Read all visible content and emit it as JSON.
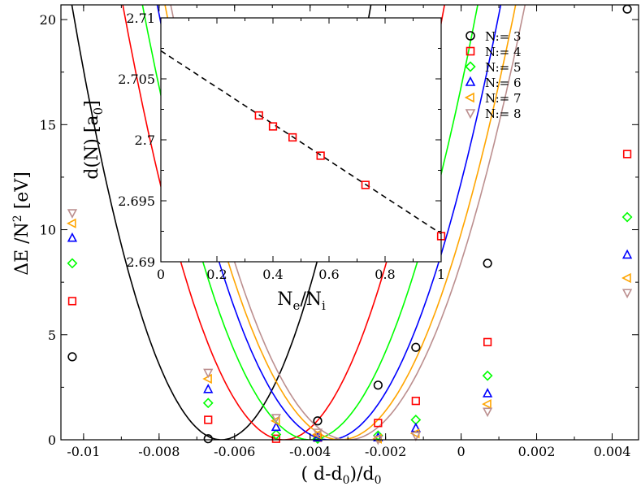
{
  "chart_data": [
    {
      "type": "scatter",
      "title": "",
      "xlabel": {
        "prefix": "( d-d",
        "sub0": "0",
        "mid": ")/d",
        "sub1": "0"
      },
      "ylabel": {
        "prefix": "ΔE /N",
        "sup": "2",
        "suffix": " [eV]"
      },
      "xlim": [
        -0.0106,
        0.0047
      ],
      "ylim": [
        0,
        20.7
      ],
      "x_ticks": [
        {
          "value": -0.01,
          "label": "-0.01"
        },
        {
          "value": -0.008,
          "label": "-0.008"
        },
        {
          "value": -0.006,
          "label": "-0.006"
        },
        {
          "value": -0.004,
          "label": "-0.004"
        },
        {
          "value": -0.002,
          "label": "-0.002"
        },
        {
          "value": 0,
          "label": "0"
        },
        {
          "value": 0.002,
          "label": "0.002"
        },
        {
          "value": 0.004,
          "label": "0.004"
        }
      ],
      "y_ticks": [
        {
          "value": 0,
          "label": "0"
        },
        {
          "value": 5,
          "label": "5"
        },
        {
          "value": 10,
          "label": "10"
        },
        {
          "value": 15,
          "label": "15"
        },
        {
          "value": 20,
          "label": "20"
        }
      ],
      "legend": "top-right",
      "series": [
        {
          "name": "N:= 3",
          "color": "#000000",
          "marker": "circle",
          "x": [
            -0.0103,
            -0.0067,
            -0.0038,
            -0.0022,
            -0.0012,
            0.0007,
            0.0044
          ],
          "y": [
            3.95,
            0.05,
            0.9,
            2.6,
            4.4,
            8.4,
            20.5
          ],
          "fit": {
            "a": 1320000,
            "x0": -0.00635,
            "c": 0
          }
        },
        {
          "name": "N:= 4",
          "color": "#ff0000",
          "marker": "square",
          "x": [
            -0.0103,
            -0.0067,
            -0.0049,
            -0.0038,
            -0.0022,
            -0.0012,
            0.0007,
            0.0044
          ],
          "y": [
            6.6,
            0.95,
            0.05,
            0.1,
            0.8,
            1.85,
            4.65,
            13.6
          ],
          "fit": {
            "a": 1140000,
            "x0": -0.0047,
            "c": 0
          }
        },
        {
          "name": "N:= 5",
          "color": "#00ff00",
          "marker": "diamond",
          "x": [
            -0.0103,
            -0.0067,
            -0.0049,
            -0.0038,
            -0.0022,
            -0.0012,
            0.0007,
            0.0044
          ],
          "y": [
            8.4,
            1.75,
            0.25,
            0.05,
            0.2,
            0.95,
            3.05,
            10.6
          ],
          "fit": {
            "a": 1050000,
            "x0": -0.004,
            "c": 0
          }
        },
        {
          "name": "N:= 6",
          "color": "#0000ff",
          "marker": "triangle-up",
          "x": [
            -0.0103,
            -0.0067,
            -0.0049,
            -0.0038,
            -0.0022,
            -0.0012,
            0.0007,
            0.0044
          ],
          "y": [
            9.6,
            2.4,
            0.6,
            0.1,
            0.1,
            0.55,
            2.2,
            8.8
          ],
          "fit": {
            "a": 1000000,
            "x0": -0.0035,
            "c": 0
          }
        },
        {
          "name": "N:= 7",
          "color": "#ffa500",
          "marker": "triangle-left",
          "x": [
            -0.0103,
            -0.0067,
            -0.0049,
            -0.0038,
            -0.0022,
            -0.0012,
            0.0007,
            0.0044
          ],
          "y": [
            10.3,
            2.9,
            0.9,
            0.25,
            0.05,
            0.3,
            1.7,
            7.7
          ],
          "fit": {
            "a": 960000,
            "x0": -0.0032,
            "c": 0
          }
        },
        {
          "name": "N:= 8",
          "color": "#bc8f8f",
          "marker": "triangle-down",
          "x": [
            -0.0103,
            -0.0067,
            -0.0049,
            -0.0038,
            -0.0022,
            -0.0012,
            0.0007,
            0.0044
          ],
          "y": [
            10.8,
            3.2,
            1.05,
            0.35,
            0.02,
            0.2,
            1.35,
            7.0
          ],
          "fit": {
            "a": 940000,
            "x0": -0.003,
            "c": 0
          }
        }
      ]
    },
    {
      "type": "scatter",
      "title": "",
      "xlabel": {
        "prefix": "N",
        "sub0": "e",
        "mid": "/N",
        "sub1": "i"
      },
      "ylabel": {
        "prefix": "d(N) [a",
        "sub": "0",
        "suffix": "]"
      },
      "xlim": [
        0,
        1
      ],
      "ylim": [
        2.69,
        2.71
      ],
      "x_ticks": [
        {
          "value": 0,
          "label": "0"
        },
        {
          "value": 0.2,
          "label": "0.2"
        },
        {
          "value": 0.4,
          "label": "0.4"
        },
        {
          "value": 0.6,
          "label": "0.6"
        },
        {
          "value": 0.8,
          "label": "0.8"
        },
        {
          "value": 1,
          "label": "1"
        }
      ],
      "y_ticks": [
        {
          "value": 2.69,
          "label": "2.69"
        },
        {
          "value": 2.695,
          "label": "2.695"
        },
        {
          "value": 2.7,
          "label": "2.7"
        },
        {
          "value": 2.705,
          "label": "2.705"
        },
        {
          "value": 2.71,
          "label": "2.71"
        }
      ],
      "series": [
        {
          "name": "d(N)",
          "color": "#ff0000",
          "marker": "square",
          "x": [
            0.35,
            0.4,
            0.47,
            0.57,
            0.73,
            1.0
          ],
          "y": [
            2.702,
            2.7011,
            2.7002,
            2.6987,
            2.6963,
            2.6921
          ]
        },
        {
          "name": "linear fit",
          "color": "#000000",
          "line": "dashed",
          "x": [
            0,
            1
          ],
          "y": [
            2.7073,
            2.6923
          ]
        }
      ]
    }
  ]
}
